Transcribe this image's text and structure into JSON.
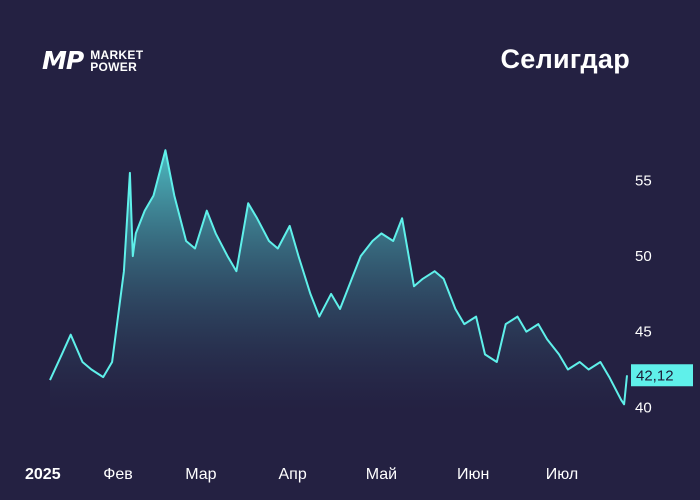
{
  "brand": {
    "mark": "MP",
    "line1": "MARKET",
    "line2": "POWER"
  },
  "title": "Селигдар",
  "colors": {
    "background": "#242142",
    "line": "#5ff0ea",
    "area_top": "#4fc3c8",
    "area_bottom": "#242142",
    "label_bg": "#5ff0ea"
  },
  "chart_data": {
    "type": "area",
    "title": "Селигдар",
    "ylim": [
      38.5,
      59
    ],
    "y_ticks": [
      40,
      45,
      50,
      55
    ],
    "y_tick_labels": [
      "40",
      "45",
      "50",
      "55"
    ],
    "x_ticks": [
      {
        "date": "2025-01-01",
        "label": "2025"
      },
      {
        "date": "2025-02-01",
        "label": "Фев"
      },
      {
        "date": "2025-03-01",
        "label": "Мар"
      },
      {
        "date": "2025-04-01",
        "label": "Апр"
      },
      {
        "date": "2025-05-01",
        "label": "Май"
      },
      {
        "date": "2025-06-01",
        "label": "Июн"
      },
      {
        "date": "2025-07-01",
        "label": "Июл"
      }
    ],
    "last_value": 42.12,
    "last_value_label": "42,12",
    "series": [
      {
        "x": [
          "2025-01-09",
          "2025-01-13",
          "2025-01-16",
          "2025-01-20",
          "2025-01-23",
          "2025-01-27",
          "2025-01-30",
          "2025-02-03",
          "2025-02-05",
          "2025-02-06",
          "2025-02-07",
          "2025-02-10",
          "2025-02-13",
          "2025-02-17",
          "2025-02-20",
          "2025-02-24",
          "2025-02-27",
          "2025-03-03",
          "2025-03-06",
          "2025-03-10",
          "2025-03-13",
          "2025-03-17",
          "2025-03-20",
          "2025-03-24",
          "2025-03-27",
          "2025-03-31",
          "2025-04-03",
          "2025-04-07",
          "2025-04-10",
          "2025-04-14",
          "2025-04-17",
          "2025-04-21",
          "2025-04-24",
          "2025-04-28",
          "2025-05-01",
          "2025-05-05",
          "2025-05-08",
          "2025-05-12",
          "2025-05-15",
          "2025-05-19",
          "2025-05-22",
          "2025-05-26",
          "2025-05-29",
          "2025-06-02",
          "2025-06-05",
          "2025-06-09",
          "2025-06-12",
          "2025-06-16",
          "2025-06-19",
          "2025-06-23",
          "2025-06-26",
          "2025-06-30",
          "2025-07-03",
          "2025-07-07",
          "2025-07-10",
          "2025-07-14",
          "2025-07-17",
          "2025-07-21",
          "2025-07-22",
          "2025-07-23"
        ],
        "values": [
          41.8,
          43.5,
          44.8,
          43.0,
          42.5,
          42.0,
          43.0,
          49.0,
          55.5,
          50.0,
          51.5,
          53.0,
          54.0,
          57.0,
          54.0,
          51.0,
          50.5,
          53.0,
          51.5,
          50.0,
          49.0,
          53.5,
          52.5,
          51.0,
          50.5,
          52.0,
          50.0,
          47.5,
          46.0,
          47.5,
          46.5,
          48.5,
          50.0,
          51.0,
          51.5,
          51.0,
          52.5,
          48.0,
          48.5,
          49.0,
          48.5,
          46.5,
          45.5,
          46.0,
          43.5,
          43.0,
          45.5,
          46.0,
          45.0,
          45.5,
          44.5,
          43.5,
          42.5,
          43.0,
          42.5,
          43.0,
          42.0,
          40.5,
          40.2,
          42.12
        ]
      }
    ]
  }
}
